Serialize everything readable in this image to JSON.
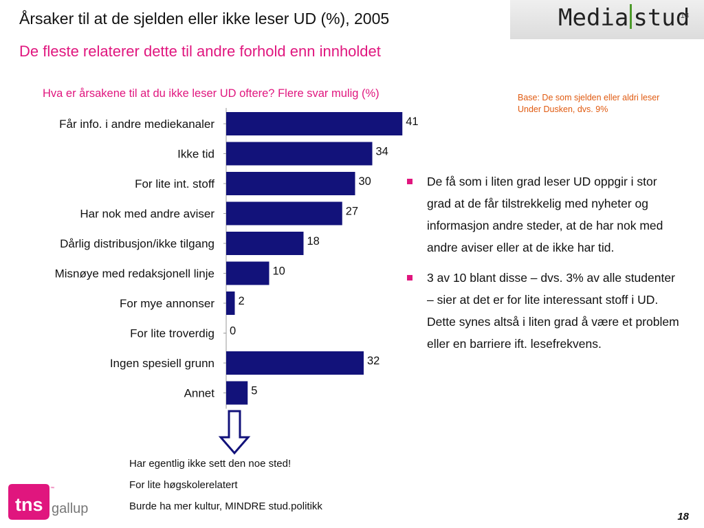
{
  "header": {
    "title": "Årsaker til at de sjelden eller ikke leser UD (%), 2005",
    "subtitle": "De fleste relaterer dette til andre forhold enn innholdet"
  },
  "logo": {
    "part1": "Media",
    "part2": "stud",
    "slide_no": "18"
  },
  "question": "Hva er årsakene til at du ikke leser UD oftere? Flere svar mulig (%)",
  "base_note": "Base: De som sjelden eller aldri leser Under Dusken, dvs. 9%",
  "chart_data": {
    "type": "bar",
    "orientation": "horizontal",
    "categories": [
      "Får info. i andre mediekanaler",
      "Ikke tid",
      "For lite int. stoff",
      "Har nok med andre aviser",
      "Dårlig distribusjon/ikke tilgang",
      "Misnøye med redaksjonell linje",
      "For mye annonser",
      "For lite troverdig",
      "Ingen spesiell grunn",
      "Annet"
    ],
    "values": [
      41,
      34,
      30,
      27,
      18,
      10,
      2,
      0,
      32,
      5
    ],
    "title": "",
    "xlabel": "",
    "ylabel": "",
    "xlim": [
      0,
      50
    ],
    "grid": false,
    "bar_color": "#12127a",
    "data_labels": true
  },
  "bullets": [
    "De få som i liten grad leser UD oppgir i stor grad at de får tilstrekkelig med nyheter og informasjon andre steder, at de har nok med andre aviser eller at de ikke har tid.",
    "3 av 10 blant disse – dvs. 3% av alle studenter – sier at det er for lite interessant stoff i UD. Dette synes altså i liten grad å være et problem eller en barriere ift. lesefrekvens."
  ],
  "arrow_icon": "down-arrow-icon",
  "notes": [
    "Har egentlig ikke sett den noe sted!",
    "For lite høgskolerelatert",
    "Burde ha mer kultur, MINDRE stud.politikk"
  ],
  "footer": {
    "brand1": "tns",
    "brand2": "gallup",
    "tm": "™",
    "page": "18"
  },
  "colors": {
    "accent": "#e0167e",
    "bar": "#12127a",
    "note": "#e05a10"
  }
}
